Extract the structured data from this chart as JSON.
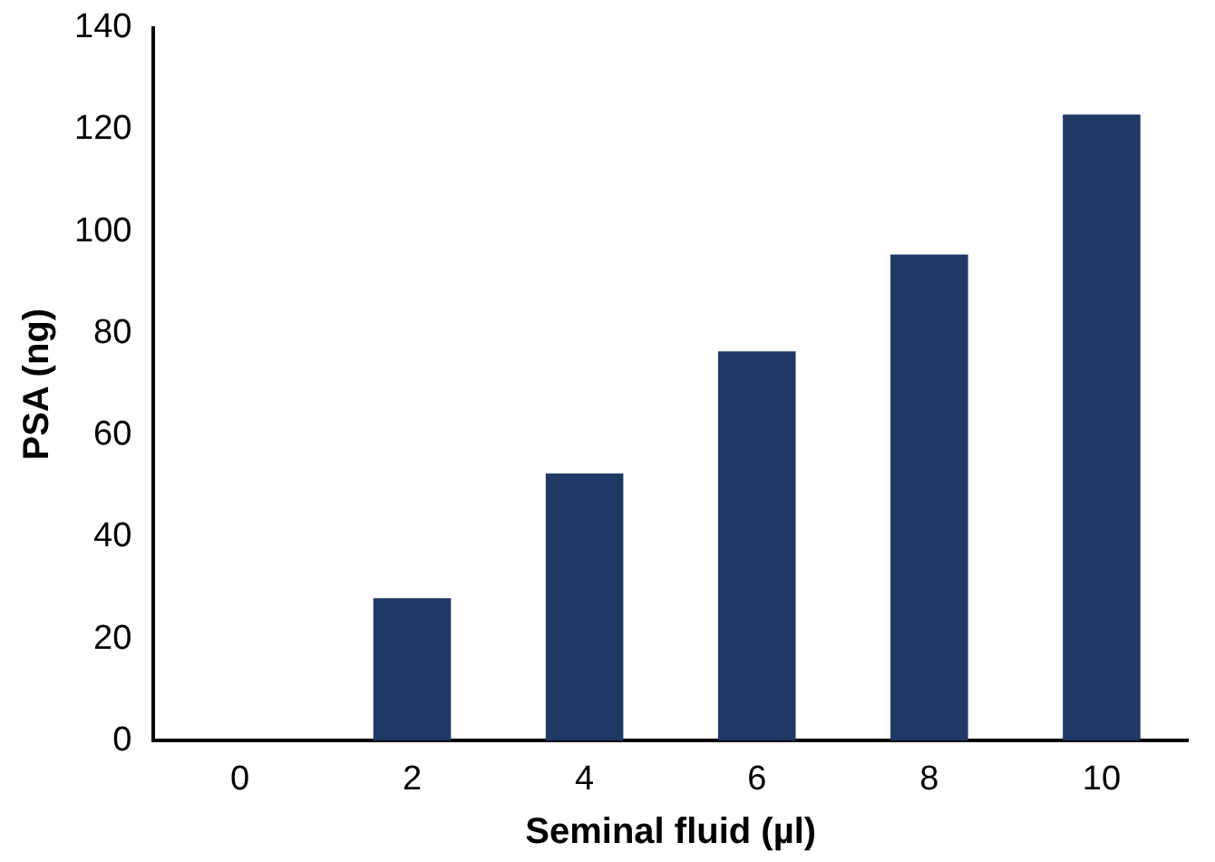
{
  "chart_data": {
    "type": "bar",
    "xlabel": "Seminal fluid (µl)",
    "ylabel": "PSA (ng)",
    "categories": [
      "0",
      "2",
      "4",
      "6",
      "8",
      "10"
    ],
    "values": [
      0,
      28,
      52.5,
      76.5,
      95.5,
      123
    ],
    "color": "#1f3864",
    "ylim": [
      0,
      140
    ],
    "yticks": [
      0,
      20,
      40,
      60,
      80,
      100,
      120,
      140
    ],
    "grid": false,
    "legend": false
  }
}
